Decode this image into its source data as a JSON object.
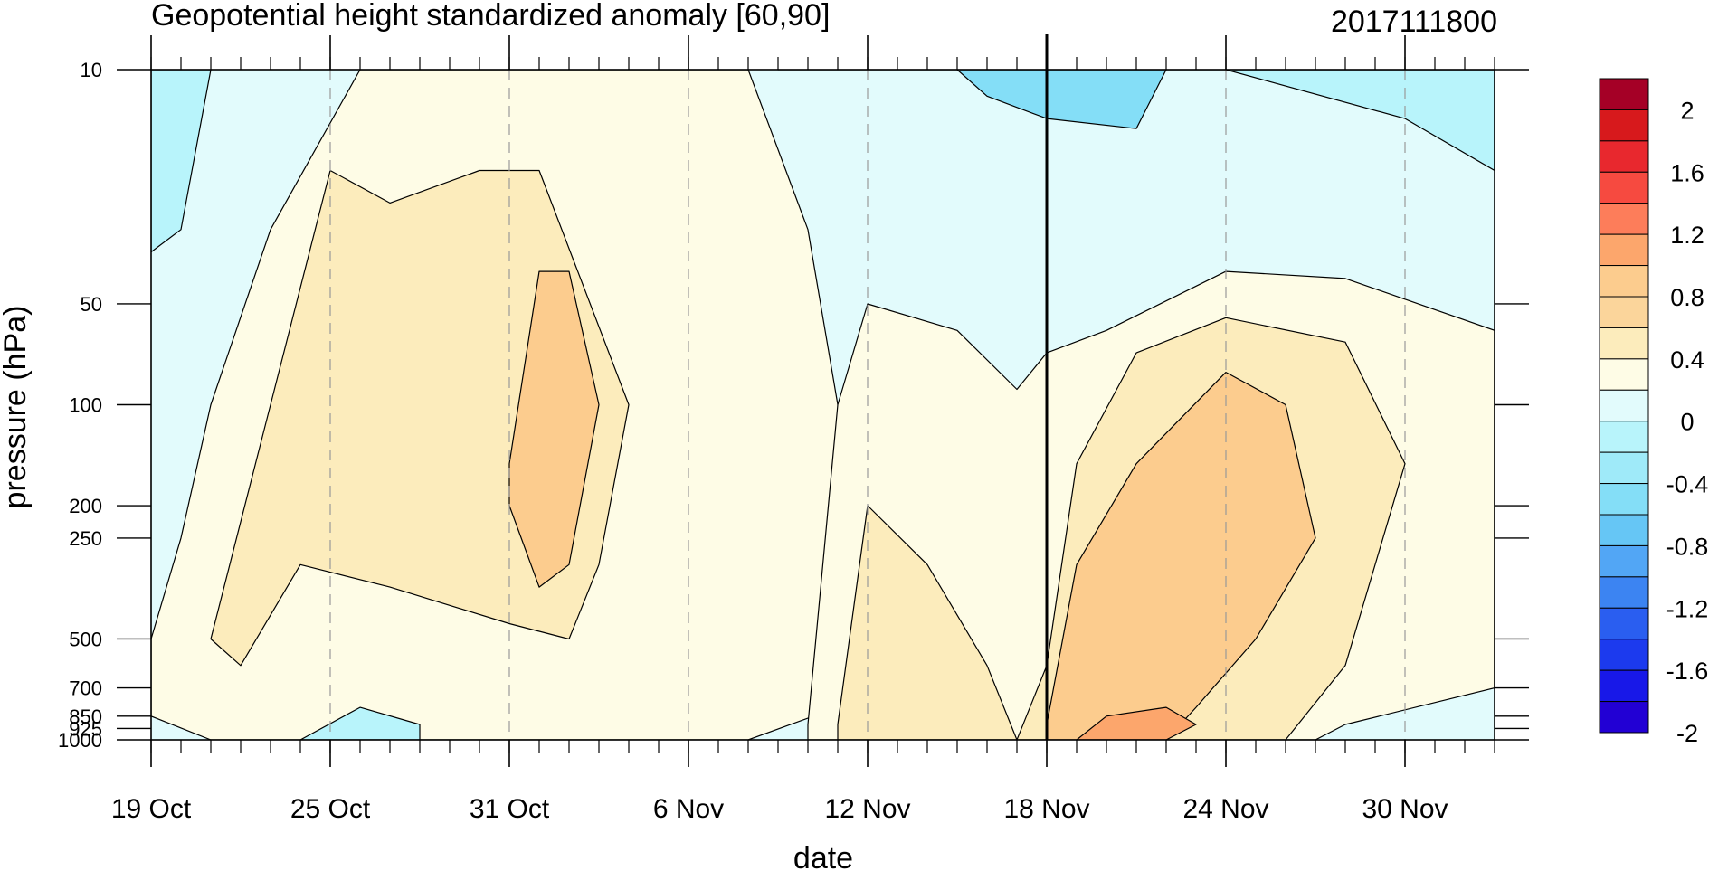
{
  "chart_data": {
    "type": "heatmap",
    "title": "Geopotential height standardized anomaly [60,90]",
    "title_right": "2017111800",
    "xlabel": "date",
    "ylabel": "pressure (hPa)",
    "x_range": [
      "2017-10-19",
      "2017-12-03"
    ],
    "x_ticks": [
      {
        "date": "2017-10-19",
        "label": "19 Oct"
      },
      {
        "date": "2017-10-25",
        "label": "25 Oct"
      },
      {
        "date": "2017-10-31",
        "label": "31 Oct"
      },
      {
        "date": "2017-11-06",
        "label": "6 Nov"
      },
      {
        "date": "2017-11-12",
        "label": "12 Nov"
      },
      {
        "date": "2017-11-18",
        "label": "18 Nov"
      },
      {
        "date": "2017-11-24",
        "label": "24 Nov"
      },
      {
        "date": "2017-11-30",
        "label": "30 Nov"
      }
    ],
    "y_scale": "log",
    "y_reversed": true,
    "y_range": [
      1000,
      10
    ],
    "y_ticks": [
      10,
      50,
      100,
      200,
      250,
      500,
      700,
      850,
      925,
      1000
    ],
    "y_tick_labels": [
      "10",
      "50",
      "100",
      "200",
      "250",
      "500",
      "700",
      "850",
      "925",
      "1000"
    ],
    "vertical_marker_date": "2017-11-18",
    "dashed_gridlines": "major date ticks",
    "colorbar": {
      "labels": [
        "2",
        "1.6",
        "1.2",
        "0.8",
        "0.4",
        "0",
        "-0.4",
        "-0.8",
        "-1.2",
        "-1.6",
        "-2"
      ],
      "colors": [
        "#a50026",
        "#d7191c",
        "#e8282e",
        "#f64a40",
        "#fd7d5a",
        "#fca66c",
        "#fccc8e",
        "#fbd59b",
        "#fcecbc",
        "#fefce6",
        "#e2fbfc",
        "#b8f4fb",
        "#9feaf9",
        "#84def7",
        "#66c6f5",
        "#52a6f5",
        "#3c84f2",
        "#2a5ef0",
        "#1c3aee",
        "#1818e8",
        "#2200d4"
      ]
    },
    "regions": [
      {
        "name": "warm-1",
        "level": 0.0,
        "color": "#fefce6",
        "points": [
          [
            "2017-10-19",
            500
          ],
          [
            "2017-10-20",
            250
          ],
          [
            "2017-10-21",
            100
          ],
          [
            "2017-10-23",
            30
          ],
          [
            "2017-10-26",
            10
          ],
          [
            "2017-11-08",
            10
          ],
          [
            "2017-11-10",
            30
          ],
          [
            "2017-11-11",
            100
          ],
          [
            "2017-11-12",
            300
          ],
          [
            "2017-11-11",
            800
          ],
          [
            "2017-11-08",
            1000
          ],
          [
            "2017-10-21",
            1000
          ],
          [
            "2017-10-19",
            850
          ]
        ]
      },
      {
        "name": "warm-2",
        "level": 0.0,
        "color": "#fefce6",
        "points": [
          [
            "2017-11-10",
            900
          ],
          [
            "2017-11-11",
            100
          ],
          [
            "2017-11-12",
            50
          ],
          [
            "2017-11-15",
            60
          ],
          [
            "2017-11-17",
            90
          ],
          [
            "2017-11-18",
            70
          ],
          [
            "2017-11-20",
            60
          ],
          [
            "2017-11-24",
            40
          ],
          [
            "2017-11-28",
            42
          ],
          [
            "2017-12-03",
            60
          ],
          [
            "2017-12-03",
            700
          ],
          [
            "2017-11-28",
            900
          ],
          [
            "2017-11-27",
            1000
          ],
          [
            "2017-11-10",
            1000
          ]
        ]
      },
      {
        "name": "warm-3",
        "level": 0.4,
        "color": "#fcecbc",
        "points": [
          [
            "2017-10-21",
            500
          ],
          [
            "2017-10-23",
            100
          ],
          [
            "2017-10-25",
            20
          ],
          [
            "2017-10-27",
            25
          ],
          [
            "2017-10-30",
            20
          ],
          [
            "2017-11-01",
            20
          ],
          [
            "2017-11-04",
            100
          ],
          [
            "2017-11-03",
            300
          ],
          [
            "2017-11-02",
            500
          ],
          [
            "2017-10-31",
            450
          ],
          [
            "2017-10-27",
            350
          ],
          [
            "2017-10-24",
            300
          ],
          [
            "2017-10-22",
            600
          ]
        ]
      },
      {
        "name": "warm-4",
        "level": 0.4,
        "color": "#fcecbc",
        "points": [
          [
            "2017-11-11",
            900
          ],
          [
            "2017-11-12",
            200
          ],
          [
            "2017-11-14",
            300
          ],
          [
            "2017-11-16",
            600
          ],
          [
            "2017-11-17",
            1000
          ],
          [
            "2017-11-11",
            1000
          ]
        ]
      },
      {
        "name": "warm-5",
        "level": 0.4,
        "color": "#fcecbc",
        "points": [
          [
            "2017-11-17",
            1000
          ],
          [
            "2017-11-18",
            600
          ],
          [
            "2017-11-19",
            150
          ],
          [
            "2017-11-21",
            70
          ],
          [
            "2017-11-24",
            55
          ],
          [
            "2017-11-28",
            65
          ],
          [
            "2017-11-30",
            150
          ],
          [
            "2017-11-28",
            600
          ],
          [
            "2017-11-26",
            1000
          ]
        ]
      },
      {
        "name": "warm-6",
        "level": 0.8,
        "color": "#fccc8e",
        "points": [
          [
            "2017-10-31",
            150
          ],
          [
            "2017-11-01",
            40
          ],
          [
            "2017-11-02",
            40
          ],
          [
            "2017-11-03",
            100
          ],
          [
            "2017-11-02",
            300
          ],
          [
            "2017-11-01",
            350
          ],
          [
            "2017-10-31",
            200
          ]
        ]
      },
      {
        "name": "warm-7",
        "level": 0.8,
        "color": "#fccc8e",
        "points": [
          [
            "2017-11-18",
            900
          ],
          [
            "2017-11-19",
            300
          ],
          [
            "2017-11-21",
            150
          ],
          [
            "2017-11-24",
            80
          ],
          [
            "2017-11-26",
            100
          ],
          [
            "2017-11-27",
            250
          ],
          [
            "2017-11-25",
            500
          ],
          [
            "2017-11-23",
            800
          ],
          [
            "2017-11-22",
            1000
          ],
          [
            "2017-11-18",
            1000
          ]
        ]
      },
      {
        "name": "warm-8",
        "level": 1.2,
        "color": "#fca66c",
        "points": [
          [
            "2017-11-19",
            1000
          ],
          [
            "2017-11-20",
            850
          ],
          [
            "2017-11-22",
            800
          ],
          [
            "2017-11-23",
            900
          ],
          [
            "2017-11-22",
            1000
          ]
        ]
      },
      {
        "name": "cold-1",
        "level": -0.4,
        "color": "#b8f4fb",
        "points": [
          [
            "2017-10-19",
            10
          ],
          [
            "2017-10-21",
            10
          ],
          [
            "2017-10-20",
            30
          ],
          [
            "2017-10-19",
            35
          ]
        ]
      },
      {
        "name": "cold-2",
        "level": -0.4,
        "color": "#b8f4fb",
        "points": [
          [
            "2017-11-09",
            10
          ],
          [
            "2017-11-24",
            10
          ],
          [
            "2017-11-30",
            14
          ],
          [
            "2017-12-03",
            20
          ],
          [
            "2017-12-03",
            10
          ]
        ]
      },
      {
        "name": "cold-3",
        "level": -0.4,
        "color": "#b8f4fb",
        "points": [
          [
            "2017-10-24",
            1000
          ],
          [
            "2017-10-26",
            800
          ],
          [
            "2017-10-28",
            900
          ],
          [
            "2017-10-28",
            1000
          ]
        ]
      },
      {
        "name": "cold-4",
        "level": -0.8,
        "color": "#84def7",
        "points": [
          [
            "2017-11-15",
            10
          ],
          [
            "2017-11-22",
            10
          ],
          [
            "2017-11-21",
            15
          ],
          [
            "2017-11-18",
            14
          ],
          [
            "2017-11-16",
            12
          ]
        ]
      }
    ]
  }
}
